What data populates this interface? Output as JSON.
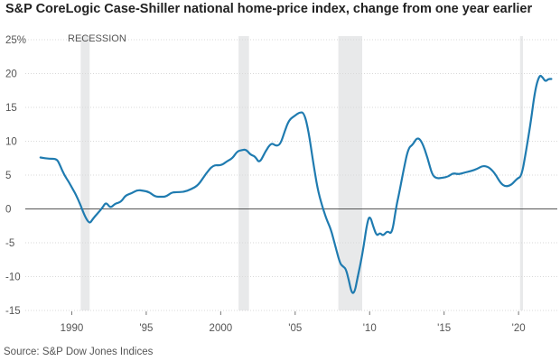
{
  "chart_data": {
    "type": "line",
    "title": "S&P CoreLogic Case-Shiller national home-price index, change from one year earlier",
    "xlabel": "",
    "ylabel": "",
    "ylim": [
      -15,
      25
    ],
    "xlim": [
      1987,
      2022.6
    ],
    "y_ticks": [
      25,
      20,
      15,
      10,
      5,
      0,
      -5,
      -10,
      -15
    ],
    "y_tick_labels": [
      "25%",
      "20",
      "15",
      "10",
      "5",
      "0",
      "-5",
      "-10",
      "-15"
    ],
    "x_ticks": [
      1990,
      1995,
      2000,
      2005,
      2010,
      2015,
      2020
    ],
    "x_tick_labels": [
      "1990",
      "'95",
      "2000",
      "'05",
      "'10",
      "'15",
      "'20"
    ],
    "recession_label": "RECESSION",
    "recessions": [
      [
        1990.6,
        1991.2
      ],
      [
        2001.2,
        2001.9
      ],
      [
        2007.9,
        2009.5
      ],
      [
        2020.1,
        2020.3
      ]
    ],
    "line_color": "#1f7bb0",
    "recession_color": "#e8e9ea",
    "series": [
      {
        "name": "Year-over-year change (%)",
        "x": [
          1987.9,
          1988.5,
          1989.0,
          1989.2,
          1989.5,
          1989.8,
          1990.1,
          1990.3,
          1990.6,
          1990.9,
          1991.2,
          1991.4,
          1991.8,
          1992.1,
          1992.3,
          1992.6,
          1992.9,
          1993.3,
          1993.6,
          1994.0,
          1994.4,
          1994.8,
          1995.2,
          1995.6,
          1996.0,
          1996.3,
          1996.7,
          1997.0,
          1997.5,
          1998.0,
          1998.5,
          1999.0,
          1999.5,
          2000.0,
          2000.4,
          2000.8,
          2001.1,
          2001.4,
          2001.7,
          2002.0,
          2002.3,
          2002.6,
          2003.0,
          2003.4,
          2003.7,
          2004.0,
          2004.3,
          2004.6,
          2005.0,
          2005.3,
          2005.6,
          2005.9,
          2006.2,
          2006.5,
          2006.8,
          2007.1,
          2007.4,
          2007.7,
          2008.0,
          2008.2,
          2008.4,
          2008.6,
          2008.8,
          2009.0,
          2009.2,
          2009.4,
          2009.6,
          2009.8,
          2010.0,
          2010.3,
          2010.5,
          2010.7,
          2010.9,
          2011.2,
          2011.5,
          2011.8,
          2012.0,
          2012.3,
          2012.6,
          2012.9,
          2013.2,
          2013.5,
          2013.9,
          2014.2,
          2014.5,
          2014.9,
          2015.3,
          2015.6,
          2016.0,
          2016.4,
          2016.8,
          2017.2,
          2017.6,
          2018.0,
          2018.4,
          2018.8,
          2019.1,
          2019.5,
          2019.9,
          2020.2,
          2020.5,
          2020.8,
          2021.1,
          2021.4,
          2021.6,
          2021.8,
          2022.0,
          2022.2
        ],
        "values": [
          7.6,
          7.4,
          7.4,
          6.5,
          5.0,
          4.0,
          2.8,
          2.0,
          0.5,
          -1.2,
          -2.2,
          -1.5,
          -0.5,
          0.3,
          1.0,
          0.1,
          0.8,
          1.0,
          2.0,
          2.3,
          2.8,
          2.7,
          2.5,
          1.8,
          1.8,
          1.8,
          2.4,
          2.5,
          2.5,
          2.9,
          3.5,
          5.2,
          6.5,
          6.4,
          7.0,
          7.5,
          8.5,
          8.7,
          8.8,
          8.0,
          7.8,
          6.7,
          8.5,
          9.8,
          9.3,
          9.5,
          11.5,
          13.2,
          13.8,
          14.3,
          14.2,
          11.5,
          7.0,
          3.0,
          0.5,
          -1.5,
          -3.0,
          -5.5,
          -8.0,
          -8.5,
          -8.8,
          -10.5,
          -12.5,
          -12.3,
          -10.0,
          -8.0,
          -5.5,
          -2.5,
          -0.8,
          -3.0,
          -4.0,
          -3.5,
          -4.0,
          -3.2,
          -3.8,
          0.5,
          2.5,
          6.0,
          9.0,
          9.5,
          10.6,
          10.0,
          7.5,
          5.0,
          4.5,
          4.6,
          4.8,
          5.3,
          5.1,
          5.4,
          5.6,
          5.9,
          6.4,
          6.2,
          5.3,
          3.8,
          3.3,
          3.5,
          4.5,
          4.8,
          8.5,
          12.5,
          17.5,
          19.8,
          19.5,
          18.8,
          19.2,
          19.2
        ]
      }
    ]
  },
  "source": "Source: S&P Dow Jones Indices"
}
